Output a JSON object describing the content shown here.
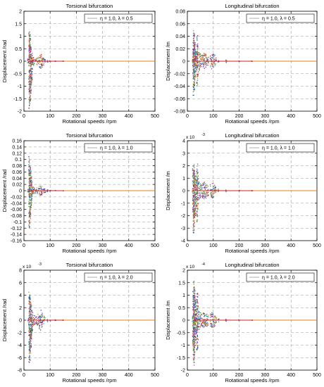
{
  "colors": {
    "orange": "#e8821e",
    "blue": "#1f3fd0",
    "green": "#2a9d3a",
    "red": "#d02020",
    "magenta": "#cc33cc",
    "cyan": "#19b5c8",
    "olive": "#9a9a2a",
    "grid": "#9a9a9a"
  },
  "chart_data": [
    {
      "type": "scatter",
      "title": "Torsional bifurcation",
      "xlabel": "Rotational speeds /rpm",
      "ylabel": "Displacement /rad",
      "xlim": [
        0,
        500
      ],
      "ylim": [
        -2,
        2
      ],
      "xticks": [
        "0",
        "100",
        "200",
        "300",
        "400",
        "500"
      ],
      "yticks": [
        "2",
        "1.5",
        "1",
        "0.5",
        "0",
        "-0.5",
        "-1",
        "-1.5",
        "-2"
      ],
      "exponent": "",
      "legend": "η = 1.0,  λ = 0.5",
      "legend_position": "top-right",
      "grid": true,
      "yspan": 1.2,
      "x": [
        15,
        18,
        20,
        22,
        24,
        26,
        28,
        30,
        32,
        35,
        40,
        45,
        50,
        55,
        60,
        65,
        70,
        75,
        80,
        90,
        100,
        120,
        150
      ],
      "y_min": [
        -0.1,
        -0.1,
        -1.9,
        -1.8,
        -1.6,
        -1.4,
        -1.0,
        -0.8,
        -0.35,
        -0.2,
        -0.12,
        -0.1,
        -0.14,
        -0.18,
        -0.28,
        -0.32,
        -0.25,
        -0.15,
        -0.08,
        -0.04,
        -0.02,
        -0.01,
        -0.005
      ],
      "y_max": [
        0.1,
        0.1,
        1.2,
        1.1,
        0.9,
        0.7,
        0.5,
        0.35,
        0.25,
        0.18,
        0.12,
        0.1,
        0.14,
        0.18,
        0.26,
        0.3,
        0.22,
        0.14,
        0.08,
        0.04,
        0.02,
        0.01,
        0.005
      ]
    },
    {
      "type": "scatter",
      "title": "Longitudinal bifurcation",
      "xlabel": "Rotational speeds /rpm",
      "ylabel": "Displacement /m",
      "xlim": [
        0,
        500
      ],
      "ylim": [
        -0.08,
        0.08
      ],
      "xticks": [
        "0",
        "100",
        "200",
        "300",
        "400",
        "500"
      ],
      "yticks": [
        "0.08",
        "0.06",
        "0.04",
        "0.02",
        "0",
        "-0.02",
        "-0.04",
        "-0.06",
        "-0.08"
      ],
      "exponent": "",
      "legend": "η = 1.0,  λ = 0.5",
      "legend_position": "top-right",
      "grid": true,
      "yspan": 0.05,
      "x": [
        20,
        22,
        24,
        26,
        28,
        30,
        32,
        35,
        38,
        40,
        45,
        50,
        55,
        60,
        65,
        70,
        75,
        80,
        90,
        95,
        100,
        105,
        110,
        120,
        150,
        200,
        250
      ],
      "y_min": [
        -0.003,
        -0.03,
        -0.055,
        -0.05,
        -0.04,
        -0.03,
        -0.02,
        -0.015,
        -0.04,
        -0.025,
        -0.015,
        -0.012,
        -0.01,
        -0.012,
        -0.014,
        -0.012,
        -0.008,
        -0.007,
        -0.01,
        -0.012,
        -0.012,
        -0.01,
        -0.006,
        -0.003,
        -0.002,
        -0.001,
        -0.0005
      ],
      "y_max": [
        0.003,
        0.03,
        0.05,
        0.045,
        0.035,
        0.025,
        0.02,
        0.015,
        0.045,
        0.025,
        0.015,
        0.012,
        0.01,
        0.012,
        0.014,
        0.012,
        0.008,
        0.007,
        0.01,
        0.012,
        0.012,
        0.01,
        0.006,
        0.003,
        0.002,
        0.001,
        0.0005
      ]
    },
    {
      "type": "scatter",
      "title": "Torsional bifurcation",
      "xlabel": "Rotational speeds /rpm",
      "ylabel": "Displacement /rad",
      "xlim": [
        0,
        500
      ],
      "ylim": [
        -0.16,
        0.16
      ],
      "xticks": [
        "0",
        "100",
        "200",
        "300",
        "400",
        "500"
      ],
      "yticks": [
        "0.16",
        "0.14",
        "0.12",
        "0.1",
        "0.08",
        "0.06",
        "0.04",
        "0.02",
        "0",
        "-0.02",
        "-0.04",
        "-0.06",
        "-0.08",
        "-0.1",
        "-0.12",
        "-0.14",
        "-0.16"
      ],
      "exponent": "",
      "legend": "η = 1.0,  λ = 1.0",
      "legend_position": "top-right",
      "grid": true,
      "yspan": 0.12,
      "x": [
        15,
        18,
        20,
        22,
        24,
        26,
        28,
        30,
        32,
        35,
        40,
        45,
        50,
        55,
        60,
        65,
        70,
        75,
        80,
        90,
        100,
        120,
        150
      ],
      "y_min": [
        -0.005,
        -0.01,
        -0.12,
        -0.11,
        -0.09,
        -0.07,
        -0.05,
        -0.03,
        -0.02,
        -0.015,
        -0.01,
        -0.008,
        -0.01,
        -0.012,
        -0.016,
        -0.018,
        -0.014,
        -0.01,
        -0.006,
        -0.003,
        -0.002,
        -0.001,
        -0.0005
      ],
      "y_max": [
        0.005,
        0.01,
        0.11,
        0.1,
        0.08,
        0.065,
        0.045,
        0.03,
        0.02,
        0.015,
        0.01,
        0.008,
        0.01,
        0.012,
        0.016,
        0.018,
        0.014,
        0.01,
        0.006,
        0.003,
        0.002,
        0.001,
        0.0005
      ]
    },
    {
      "type": "scatter",
      "title": "Longitudinal bifurcation",
      "xlabel": "Rotational speeds /rpm",
      "ylabel": "Displacement /m",
      "xlim": [
        0,
        500
      ],
      "ylim": [
        -4,
        4
      ],
      "xticks": [
        "0",
        "100",
        "200",
        "300",
        "400",
        "500"
      ],
      "yticks": [
        "4",
        "3",
        "2",
        "1",
        "0",
        "-1",
        "-2",
        "-3",
        "-4"
      ],
      "exponent": "x 10",
      "exponent_power": "-3",
      "legend": "η = 1.0,  λ = 1.0",
      "legend_position": "top-right",
      "grid": true,
      "yspan": 3.4,
      "x": [
        20,
        22,
        24,
        26,
        28,
        30,
        32,
        35,
        38,
        40,
        45,
        50,
        55,
        60,
        65,
        70,
        75,
        80,
        90,
        95,
        100,
        105,
        110,
        120,
        150,
        200,
        250
      ],
      "y_min": [
        -0.2,
        -2.0,
        -3.4,
        -3.0,
        -2.5,
        -2.0,
        -1.5,
        -1.0,
        -2.5,
        -1.5,
        -0.8,
        -0.6,
        -0.5,
        -0.6,
        -0.7,
        -0.6,
        -0.5,
        -0.4,
        -0.5,
        -0.6,
        -0.6,
        -0.5,
        -0.3,
        -0.15,
        -0.08,
        -0.04,
        -0.02
      ],
      "y_max": [
        0.2,
        2.0,
        2.1,
        1.8,
        1.6,
        1.4,
        1.2,
        1.0,
        2.2,
        1.5,
        0.8,
        0.6,
        0.5,
        0.6,
        0.7,
        0.6,
        0.5,
        0.4,
        0.5,
        0.6,
        0.6,
        0.5,
        0.3,
        0.15,
        0.08,
        0.04,
        0.02
      ]
    },
    {
      "type": "scatter",
      "title": "Torsional bifurcation",
      "xlabel": "Rotational speeds /rpm",
      "ylabel": "Displacement /rad",
      "xlim": [
        0,
        500
      ],
      "ylim": [
        -8,
        8
      ],
      "xticks": [
        "0",
        "100",
        "200",
        "300",
        "400",
        "500"
      ],
      "yticks": [
        "8",
        "6",
        "4",
        "2",
        "0",
        "-2",
        "-4",
        "-6",
        "-8"
      ],
      "exponent": "x 10",
      "exponent_power": "-3",
      "legend": "η = 1.0,  λ = 2.0",
      "legend_position": "top-right",
      "grid": true,
      "yspan": 7,
      "x": [
        15,
        18,
        20,
        22,
        24,
        26,
        28,
        30,
        32,
        35,
        40,
        45,
        50,
        55,
        60,
        65,
        70,
        75,
        80,
        90,
        100,
        120,
        150
      ],
      "y_min": [
        -0.2,
        -0.4,
        -7.0,
        -6.5,
        -5.5,
        -4.5,
        -3.5,
        -2.5,
        -1.8,
        -1.2,
        -0.8,
        -0.6,
        -0.8,
        -1.0,
        -1.4,
        -1.6,
        -1.2,
        -0.8,
        -0.5,
        -0.25,
        -0.12,
        -0.06,
        -0.03
      ],
      "y_max": [
        0.2,
        0.4,
        4.6,
        4.2,
        3.6,
        3.0,
        2.4,
        1.8,
        1.4,
        1.0,
        0.8,
        0.6,
        0.8,
        1.0,
        1.4,
        1.6,
        1.2,
        0.8,
        0.5,
        0.25,
        0.12,
        0.06,
        0.03
      ]
    },
    {
      "type": "scatter",
      "title": "Longitudinal bifurcation",
      "xlabel": "Rotational speeds /rpm",
      "ylabel": "Displacement /m",
      "xlim": [
        0,
        500
      ],
      "ylim": [
        -2,
        2
      ],
      "xticks": [
        "0",
        "100",
        "200",
        "300",
        "400",
        "500"
      ],
      "yticks": [
        "2",
        "1.5",
        "1",
        "0.5",
        "0",
        "-0.5",
        "-1",
        "-1.5",
        "-2"
      ],
      "exponent": "x 10",
      "exponent_power": "-4",
      "legend": "η = 1.0,  λ = 2.0",
      "legend_position": "top-right",
      "grid": true,
      "yspan": 1.9,
      "x": [
        20,
        22,
        24,
        26,
        28,
        30,
        32,
        35,
        38,
        40,
        45,
        50,
        55,
        60,
        65,
        70,
        75,
        80,
        90,
        95,
        100,
        105,
        110,
        120,
        150,
        200,
        250
      ],
      "y_min": [
        -0.1,
        -1.2,
        -1.9,
        -1.7,
        -1.4,
        -1.1,
        -0.8,
        -0.6,
        -1.2,
        -0.8,
        -0.4,
        -0.3,
        -0.25,
        -0.3,
        -0.35,
        -0.3,
        -0.25,
        -0.2,
        -0.25,
        -0.3,
        -0.3,
        -0.25,
        -0.15,
        -0.08,
        -0.04,
        -0.02,
        -0.01
      ],
      "y_max": [
        0.1,
        1.2,
        1.6,
        1.4,
        1.2,
        1.0,
        0.8,
        0.6,
        1.1,
        0.8,
        0.4,
        0.3,
        0.25,
        0.3,
        0.35,
        0.3,
        0.25,
        0.2,
        0.25,
        0.3,
        0.3,
        0.25,
        0.15,
        0.08,
        0.04,
        0.02,
        0.01
      ]
    }
  ]
}
